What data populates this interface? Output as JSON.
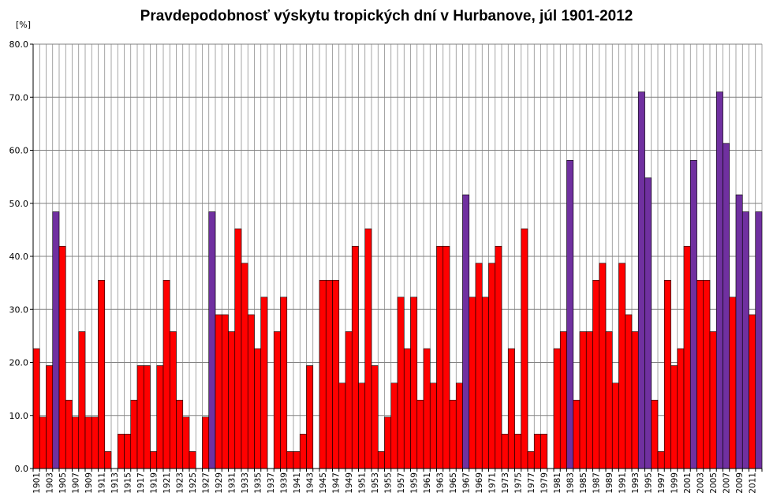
{
  "chart_data": {
    "type": "bar",
    "title": "Pravdepodobnosť výskytu tropických dní v Hurbanove, júl 1901-2012",
    "ylabel": "[%]",
    "ylim": [
      0,
      80
    ],
    "yticks": [
      "0.0",
      "10.0",
      "20.0",
      "30.0",
      "40.0",
      "50.0",
      "60.0",
      "70.0",
      "80.0"
    ],
    "grid": true,
    "colors": {
      "normal": "#ff0000",
      "highlight": "#7030a0",
      "grid": "#808080"
    },
    "categories": [
      "1901",
      "1902",
      "1903",
      "1904",
      "1905",
      "1906",
      "1907",
      "1908",
      "1909",
      "1910",
      "1911",
      "1912",
      "1913",
      "1914",
      "1915",
      "1916",
      "1917",
      "1918",
      "1919",
      "1920",
      "1921",
      "1922",
      "1923",
      "1924",
      "1925",
      "1926",
      "1927",
      "1928",
      "1929",
      "1930",
      "1931",
      "1932",
      "1933",
      "1934",
      "1935",
      "1936",
      "1937",
      "1938",
      "1939",
      "1940",
      "1941",
      "1942",
      "1943",
      "1944",
      "1945",
      "1946",
      "1947",
      "1948",
      "1949",
      "1950",
      "1951",
      "1952",
      "1953",
      "1954",
      "1955",
      "1956",
      "1957",
      "1958",
      "1959",
      "1960",
      "1961",
      "1962",
      "1963",
      "1964",
      "1965",
      "1966",
      "1967",
      "1968",
      "1969",
      "1970",
      "1971",
      "1972",
      "1973",
      "1974",
      "1975",
      "1976",
      "1977",
      "1978",
      "1979",
      "1980",
      "1981",
      "1982",
      "1983",
      "1984",
      "1985",
      "1986",
      "1987",
      "1988",
      "1989",
      "1990",
      "1991",
      "1992",
      "1993",
      "1994",
      "1995",
      "1996",
      "1997",
      "1998",
      "1999",
      "2000",
      "2001",
      "2002",
      "2003",
      "2004",
      "2005",
      "2006",
      "2007",
      "2008",
      "2009",
      "2010",
      "2011",
      "2012"
    ],
    "values": [
      22.6,
      9.7,
      19.4,
      48.4,
      41.9,
      12.9,
      9.7,
      25.8,
      9.7,
      9.7,
      35.5,
      3.2,
      0,
      6.5,
      6.5,
      12.9,
      19.4,
      19.4,
      3.2,
      19.4,
      35.5,
      25.8,
      12.9,
      9.7,
      3.2,
      0,
      9.7,
      48.4,
      29.0,
      29.0,
      25.8,
      45.2,
      38.7,
      29.0,
      22.6,
      32.3,
      0,
      25.8,
      32.3,
      3.2,
      3.2,
      6.5,
      19.4,
      0,
      35.5,
      35.5,
      35.5,
      16.1,
      25.8,
      41.9,
      16.1,
      45.2,
      19.4,
      3.2,
      9.7,
      16.1,
      32.3,
      22.6,
      32.3,
      12.9,
      22.6,
      16.1,
      41.9,
      41.9,
      12.9,
      16.1,
      51.6,
      32.3,
      38.7,
      32.3,
      38.7,
      41.9,
      6.5,
      22.6,
      6.5,
      45.2,
      3.2,
      6.5,
      6.5,
      0,
      22.6,
      25.8,
      58.1,
      12.9,
      25.8,
      25.8,
      35.5,
      38.7,
      25.8,
      16.1,
      38.7,
      29.0,
      25.8,
      71.0,
      54.8,
      12.9,
      3.2,
      35.5,
      19.4,
      22.6,
      41.9,
      58.1,
      35.5,
      35.5,
      25.8,
      71.0,
      61.3,
      32.3,
      51.6,
      48.4,
      29.0,
      48.4
    ],
    "highlighted": [
      "1904",
      "1928",
      "1967",
      "1983",
      "1994",
      "1995",
      "2002",
      "2006",
      "2007",
      "2009",
      "2010",
      "2012"
    ]
  }
}
